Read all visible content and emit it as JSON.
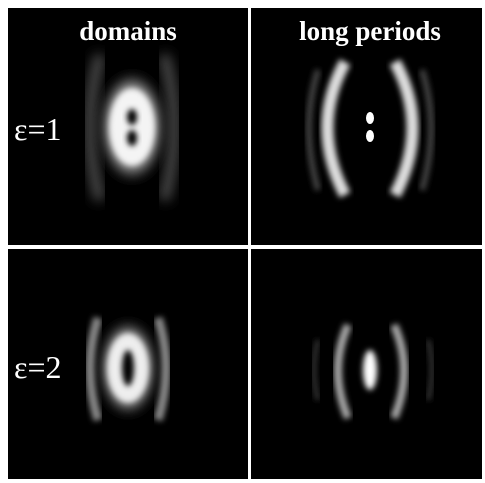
{
  "column_headers": [
    "domains",
    "long periods"
  ],
  "row_labels": [
    "ε=1",
    "ε=2"
  ]
}
